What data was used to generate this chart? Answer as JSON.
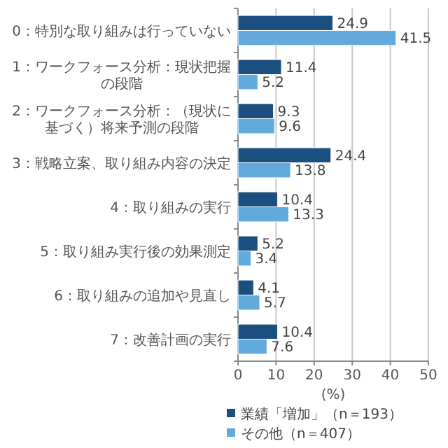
{
  "chart_data": {
    "type": "bar",
    "orientation": "horizontal",
    "xlabel": "(%)",
    "categories": [
      "0：特別な取り組みは行っていない",
      "1：ワークフォース分析：現状把握の段階",
      "2：ワークフォース分析：（現状に基づく）将来予測の段階",
      "3：戦略立案、取り組み内容の決定",
      "4：取り組みの実行",
      "5：取り組み実行後の効果測定",
      "6：取り組みの追加や見直し",
      "7：改善計画の実行"
    ],
    "series": [
      {
        "name": "業績「増加」（n＝193）",
        "color": "#1b4f80",
        "values": [
          24.9,
          11.4,
          9.3,
          24.4,
          10.4,
          5.2,
          4.1,
          10.4
        ]
      },
      {
        "name": "その他（n＝407）",
        "color": "#62a9dc",
        "values": [
          41.5,
          5.2,
          9.6,
          13.8,
          13.3,
          3.4,
          5.7,
          7.6
        ]
      }
    ],
    "xlim": [
      0,
      50
    ],
    "xticks": [
      0,
      10,
      20,
      30,
      40,
      50
    ],
    "grid": "x",
    "legend": "bottom",
    "data_labels": true
  }
}
